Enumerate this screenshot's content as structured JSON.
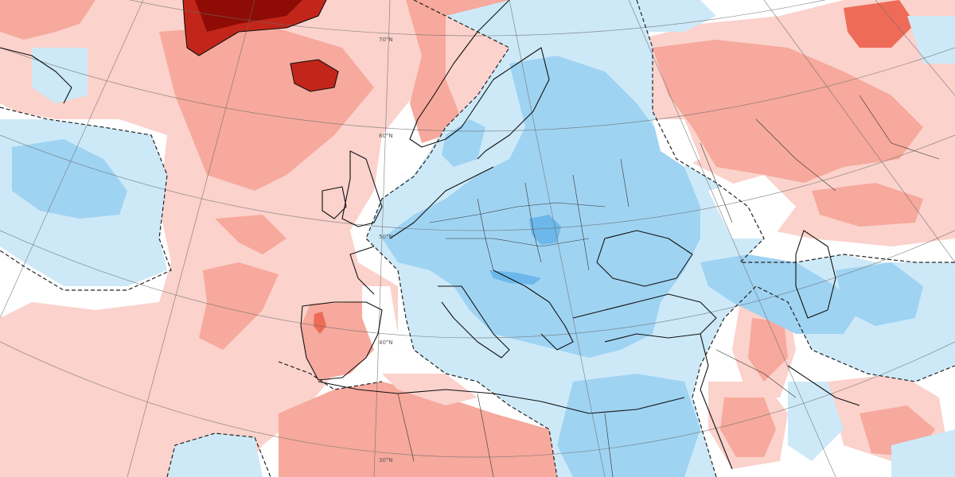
{
  "map": {
    "latitude_labels": [
      "70°N",
      "60°N",
      "50°N",
      "40°N",
      "30°N"
    ],
    "colors": {
      "background": "#ffffff",
      "pos_weak": "#fbd2cc",
      "pos_mod": "#f6a99c",
      "pos_strong": "#ee6b58",
      "pos_extreme": "#c2261a",
      "pos_max": "#8e0c05",
      "neg_weak": "#cde9f8",
      "neg_mod": "#9fd3f2",
      "neg_strong": "#6cb8ea"
    }
  }
}
